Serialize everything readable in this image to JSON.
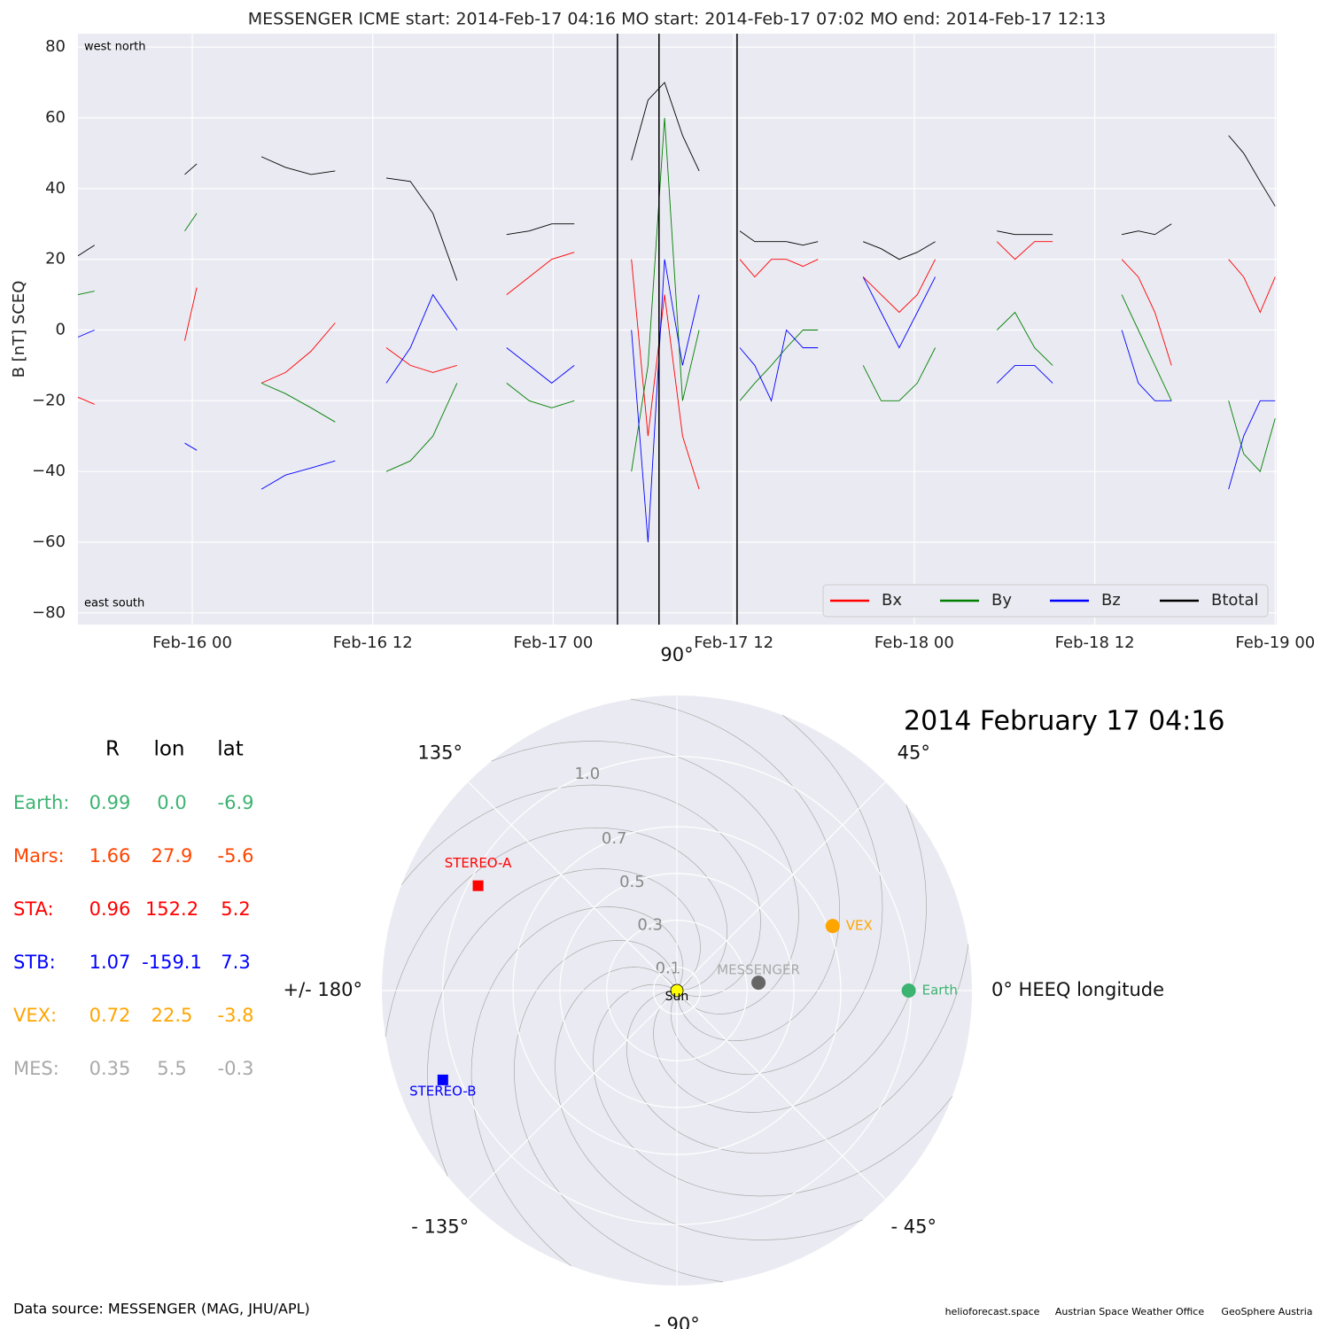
{
  "chart_data": [
    {
      "type": "line",
      "title": "MESSENGER    ICME start: 2014-Feb-17 04:16   MO start: 2014-Feb-17 07:02   MO end: 2014-Feb-17 12:13",
      "ylabel": "B [nT] SCEQ",
      "annotations": [
        "west    north",
        "east    south"
      ],
      "xlim": [
        -7.6,
        72.1
      ],
      "ylim": [
        -83.3,
        83.8
      ],
      "xticks": [
        {
          "value": 0,
          "label": "Feb-16 00"
        },
        {
          "value": 12,
          "label": "Feb-16 12"
        },
        {
          "value": 24,
          "label": "Feb-17 00"
        },
        {
          "value": 36,
          "label": "Feb-17 12"
        },
        {
          "value": 48,
          "label": "Feb-18 00"
        },
        {
          "value": 60,
          "label": "Feb-18 12"
        },
        {
          "value": 72,
          "label": "Feb-19 00"
        }
      ],
      "yticks": [
        {
          "value": -80,
          "label": "−80"
        },
        {
          "value": -60,
          "label": "−60"
        },
        {
          "value": -40,
          "label": "−40"
        },
        {
          "value": -20,
          "label": "−20"
        },
        0,
        20,
        40,
        60,
        80
      ],
      "event_lines": [
        28.27,
        31.03,
        36.22
      ],
      "grid": true,
      "legend": "lower right",
      "x": [
        -7.6,
        -6.5,
        -4,
        -0.5,
        0.3,
        2,
        4.6,
        6.2,
        7.9,
        9.5,
        11,
        12.9,
        14.5,
        16,
        17.6,
        19,
        20.9,
        22.4,
        23.9,
        25.4,
        27,
        29.2,
        30.3,
        31.4,
        32.6,
        33.7,
        35,
        36.4,
        37.4,
        38.5,
        39.5,
        40.6,
        41.6,
        43,
        44.6,
        45.8,
        47,
        48.2,
        49.4,
        51,
        53.5,
        54.7,
        56,
        57.2,
        59,
        61.8,
        62.9,
        64,
        65.1,
        67,
        68.9,
        69.9,
        71,
        72
      ],
      "series": [
        {
          "name": "Bx",
          "color": "#ff0000",
          "values": [
            -19,
            -21,
            null,
            -3,
            12,
            null,
            -15,
            -12,
            -6,
            2,
            null,
            -5,
            -10,
            -12,
            -10,
            null,
            10,
            15,
            20,
            22,
            null,
            20,
            -30,
            10,
            -30,
            -45,
            null,
            20,
            15,
            20,
            20,
            18,
            20,
            null,
            15,
            10,
            5,
            10,
            20,
            null,
            25,
            20,
            25,
            25,
            null,
            20,
            15,
            5,
            -10,
            null,
            20,
            15,
            5,
            15
          ]
        },
        {
          "name": "By",
          "color": "#008000",
          "values": [
            10,
            11,
            null,
            28,
            33,
            null,
            -15,
            -18,
            -22,
            -26,
            null,
            -40,
            -37,
            -30,
            -15,
            null,
            -15,
            -20,
            -22,
            -20,
            null,
            -40,
            -10,
            60,
            -20,
            0,
            null,
            -20,
            -15,
            -10,
            -5,
            0,
            0,
            null,
            -10,
            -20,
            -20,
            -15,
            -5,
            null,
            0,
            5,
            -5,
            -10,
            null,
            10,
            0,
            -10,
            -20,
            null,
            -20,
            -35,
            -40,
            -25
          ]
        },
        {
          "name": "Bz",
          "color": "#0000ff",
          "values": [
            -2,
            0,
            null,
            -32,
            -34,
            null,
            -45,
            -41,
            -39,
            -37,
            null,
            -15,
            -5,
            10,
            0,
            null,
            -5,
            -10,
            -15,
            -10,
            null,
            0,
            -60,
            20,
            -10,
            10,
            null,
            -5,
            -10,
            -20,
            0,
            -5,
            -5,
            null,
            15,
            5,
            -5,
            5,
            15,
            null,
            -15,
            -10,
            -10,
            -15,
            null,
            0,
            -15,
            -20,
            -20,
            null,
            -45,
            -30,
            -20,
            -20
          ]
        },
        {
          "name": "Btotal",
          "color": "#000000",
          "values": [
            21,
            24,
            null,
            44,
            47,
            null,
            49,
            46,
            44,
            45,
            null,
            43,
            42,
            33,
            14,
            null,
            27,
            28,
            30,
            30,
            null,
            48,
            65,
            70,
            55,
            45,
            null,
            28,
            25,
            25,
            25,
            24,
            25,
            null,
            25,
            23,
            20,
            22,
            25,
            null,
            28,
            27,
            27,
            27,
            null,
            27,
            28,
            27,
            30,
            null,
            55,
            50,
            42,
            35
          ]
        }
      ]
    },
    {
      "type": "polar",
      "date": "2014 February 17  04:16",
      "rlim": [
        0,
        1.26
      ],
      "rticks": [
        0.1,
        0.3,
        0.5,
        0.7,
        {
          "value": 1,
          "label": "1.0"
        }
      ],
      "thetaticks": [
        {
          "value": 0,
          "label": "0° HEEQ longitude"
        },
        {
          "value": 45,
          "label": "45°"
        },
        {
          "value": 90,
          "label": "90°"
        },
        {
          "value": 135,
          "label": "135°"
        },
        {
          "value": 180,
          "label": "+/- 180°"
        },
        {
          "value": -135,
          "label": "- 135°"
        },
        {
          "value": -90,
          "label": "- 90°"
        },
        {
          "value": -45,
          "label": "- 45°"
        }
      ],
      "sun": {
        "label": "Sun",
        "color": "#ffff00"
      },
      "table": {
        "headers": [
          "R",
          "lon",
          "lat"
        ],
        "rows": [
          {
            "name": "Earth:",
            "plot_label": "Earth",
            "color": "#3cb371",
            "R": 0.99,
            "lon": {
              "value": 0,
              "label": "0.0"
            },
            "lat": -6.9
          },
          {
            "name": "Mars:",
            "color": "#ff4500",
            "R": 1.66,
            "lon": 27.9,
            "lat": -5.6
          },
          {
            "name": "STA:",
            "plot_label": "STEREO-A",
            "marker": "square",
            "color": "#ff0000",
            "R": 0.96,
            "lon": 152.2,
            "lat": 5.2
          },
          {
            "name": "STB:",
            "plot_label": "STEREO-B",
            "marker": "square",
            "color": "#0000ff",
            "R": 1.07,
            "lon": -159.1,
            "lat": 7.3
          },
          {
            "name": "VEX:",
            "plot_label": "VEX",
            "color": "#ffa500",
            "R": 0.72,
            "lon": 22.5,
            "lat": -3.8
          },
          {
            "name": "MES:",
            "plot_label": "MESSENGER",
            "color": "#a9a9a9",
            "R": 0.35,
            "lon": 5.5,
            "lat": -0.3
          }
        ]
      }
    }
  ],
  "footer": {
    "source": "Data source: MESSENGER (MAG, JHU/APL)",
    "credits": [
      "helioforecast.space",
      "Austrian Space Weather Office",
      "GeoSphere Austria"
    ]
  }
}
